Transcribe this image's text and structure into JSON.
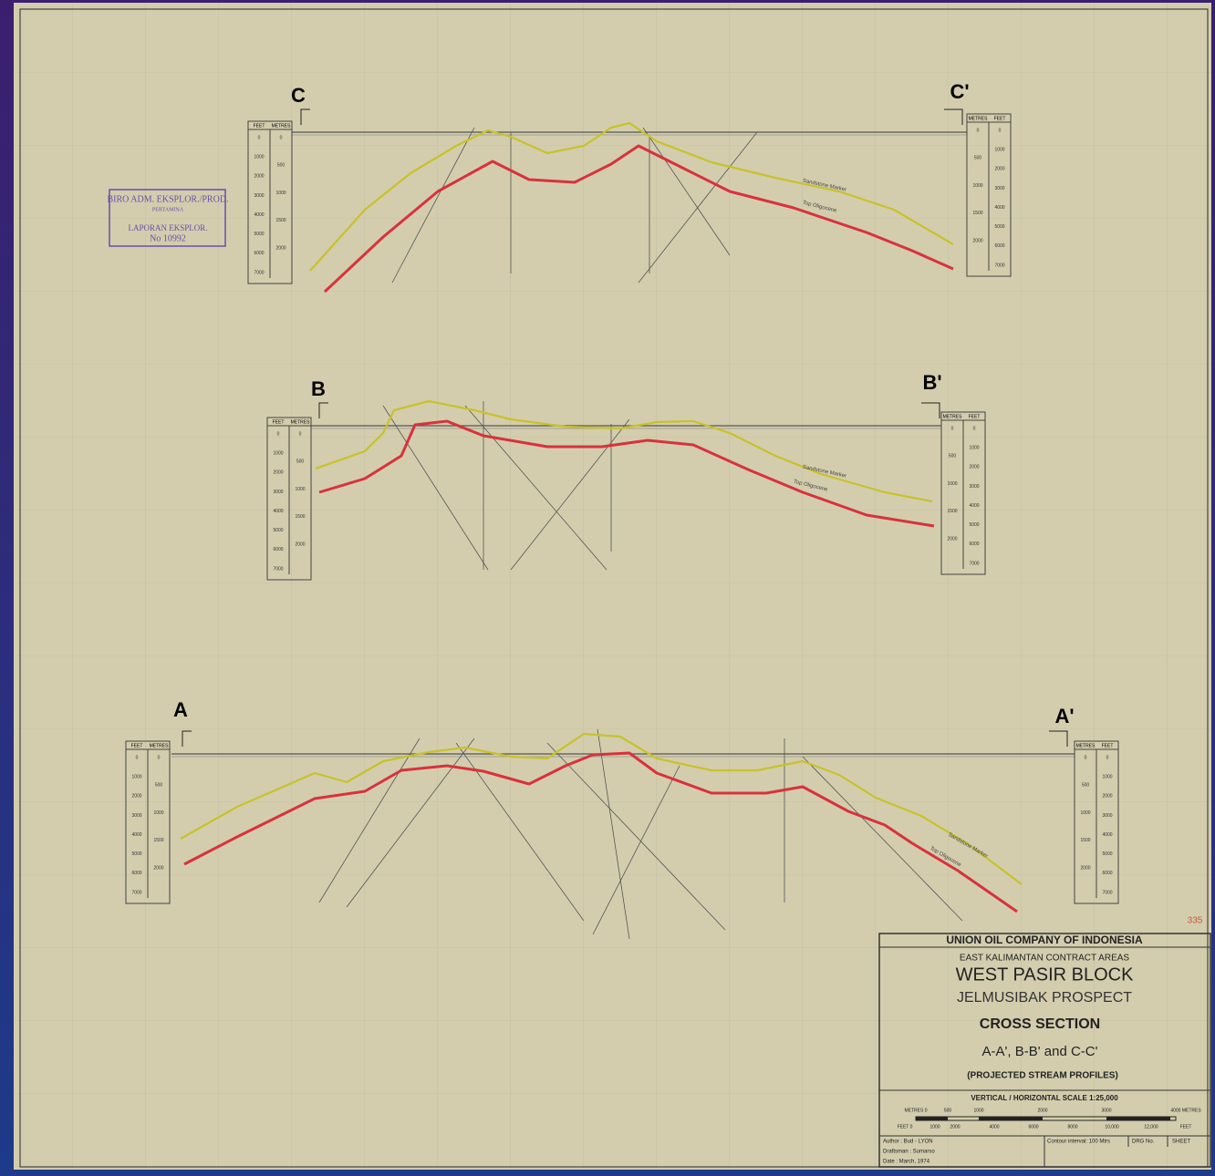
{
  "sections": [
    {
      "start_label": "C",
      "end_label": "C'",
      "sandstone_label": "Sandstone Marker",
      "oligocene_label": "Top Oligocene"
    },
    {
      "start_label": "B",
      "end_label": "B'",
      "sandstone_label": "Sandstone Marker",
      "oligocene_label": "Top Oligocene"
    },
    {
      "start_label": "A",
      "end_label": "A'",
      "sandstone_label": "Sandstone Marker",
      "oligocene_label": "Top Oligocene"
    }
  ],
  "depth_scale": {
    "feet_header": "FEET",
    "metres_header": "METRES",
    "feet": [
      "0",
      "1000",
      "2000",
      "3000",
      "4000",
      "5000",
      "6000",
      "7000"
    ],
    "metres": [
      "0",
      "500",
      "1000",
      "1500",
      "2000"
    ]
  },
  "stamp": {
    "line1": "BIRO ADM. EKSPLOR./PROD.",
    "line2": "PERTAMINA",
    "line3": "LAPORAN EKSPLOR.",
    "line4": "No 10992"
  },
  "sheet_mark": "335",
  "title_block": {
    "company": "UNION OIL COMPANY OF INDONESIA",
    "area": "EAST KALIMANTAN CONTRACT AREAS",
    "block": "WEST PASIR BLOCK",
    "prospect": "JELMUSIBAK PROSPECT",
    "title": "CROSS SECTION",
    "sections": "A-A', B-B' and C-C'",
    "subtitle": "(PROJECTED STREAM PROFILES)",
    "scale": "VERTICAL / HORIZONTAL SCALE 1:25,000",
    "metres_ticks": [
      "METRES 0",
      "500",
      "1000",
      "2000",
      "3000",
      "4000 METRES"
    ],
    "feet_ticks": [
      "FEET 0",
      "1000",
      "2000",
      "4000",
      "6000",
      "8000",
      "10,000",
      "12,000",
      "FEET"
    ],
    "author": "Author : Bud - LYON",
    "draftsman": "Draftsman : Sumarso",
    "date": "Date : March, 1974",
    "contour": "Contour interval: 100 Mtrs",
    "drg": "DRG No.",
    "sheet": "SHEET"
  }
}
